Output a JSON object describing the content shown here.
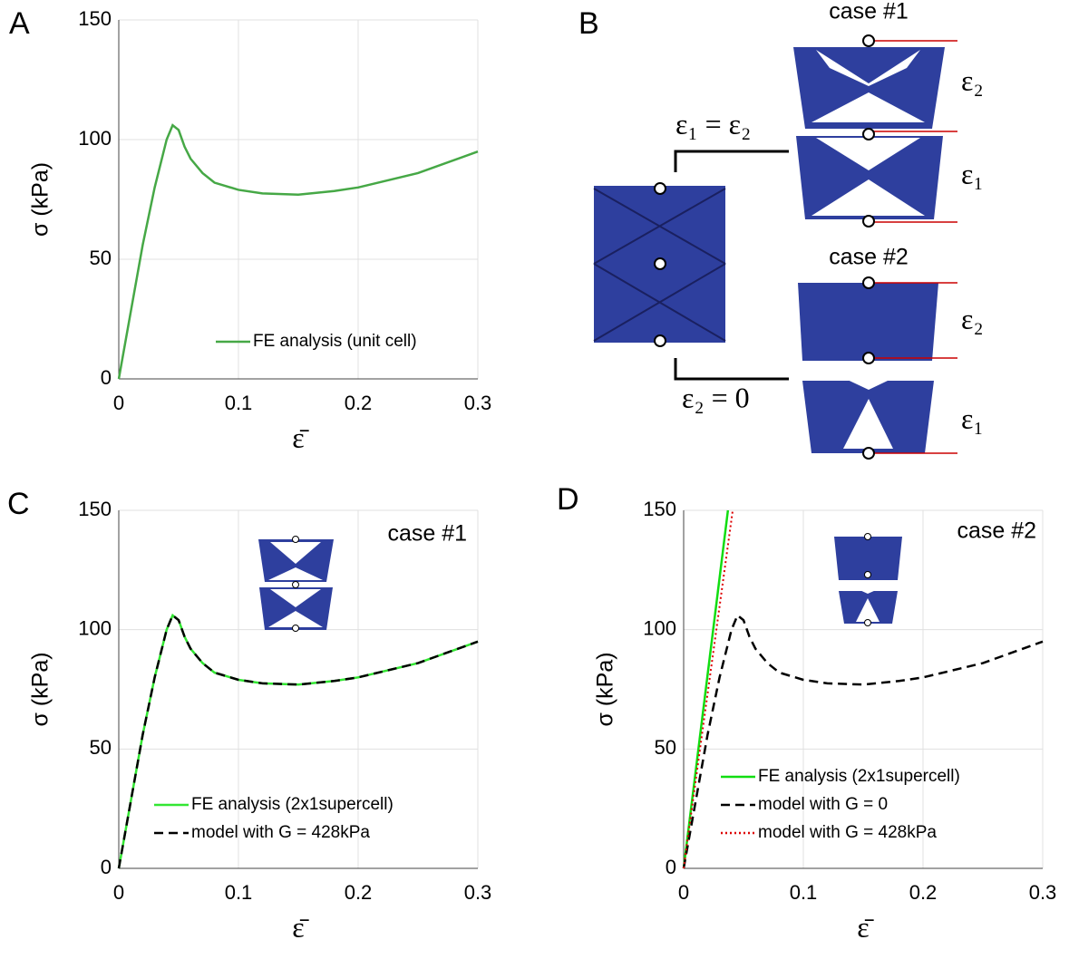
{
  "chart_data": [
    {
      "type": "line",
      "panel": "A",
      "xlabel": "ε̄",
      "ylabel": "σ (kPa)",
      "xlim": [
        0,
        0.3
      ],
      "ylim": [
        0,
        150
      ],
      "xticks": [
        0,
        0.1,
        0.2,
        0.3
      ],
      "yticks": [
        0,
        50,
        100,
        150
      ],
      "grid": true,
      "legend": "lower right",
      "series": [
        {
          "name": "FE analysis (unit cell)",
          "color": "#46a846",
          "style": "solid",
          "x": [
            0,
            0.01,
            0.02,
            0.03,
            0.04,
            0.045,
            0.05,
            0.055,
            0.06,
            0.07,
            0.08,
            0.1,
            0.12,
            0.15,
            0.18,
            0.2,
            0.25,
            0.3
          ],
          "values": [
            0,
            28,
            56,
            80,
            100,
            106,
            104,
            97,
            92,
            86,
            82,
            79,
            77.5,
            77,
            78.5,
            80,
            86,
            95
          ]
        }
      ]
    },
    {
      "type": "line",
      "panel": "C",
      "annotation": "case #1",
      "xlabel": "ε̄",
      "ylabel": "σ (kPa)",
      "xlim": [
        0,
        0.3
      ],
      "ylim": [
        0,
        150
      ],
      "xticks": [
        0,
        0.1,
        0.2,
        0.3
      ],
      "yticks": [
        0,
        50,
        100,
        150
      ],
      "grid": true,
      "legend": "lower left",
      "series": [
        {
          "name": "FE analysis (2x1supercell)",
          "color": "#33e633",
          "style": "solid",
          "x": [
            0,
            0.01,
            0.02,
            0.03,
            0.04,
            0.045,
            0.05,
            0.055,
            0.06,
            0.07,
            0.08,
            0.1,
            0.12,
            0.15,
            0.18,
            0.2,
            0.25,
            0.3
          ],
          "values": [
            0,
            28,
            56,
            80,
            100,
            106,
            104,
            97,
            92,
            86,
            82,
            79,
            77.5,
            77,
            78.5,
            80,
            86,
            95
          ]
        },
        {
          "name": "model with G = 428kPa",
          "color": "#000000",
          "style": "dashed",
          "x": [
            0,
            0.01,
            0.02,
            0.03,
            0.04,
            0.045,
            0.05,
            0.055,
            0.06,
            0.07,
            0.08,
            0.1,
            0.12,
            0.15,
            0.18,
            0.2,
            0.25,
            0.3
          ],
          "values": [
            0,
            28,
            56,
            80,
            100,
            106,
            104,
            97,
            92,
            86,
            82,
            79,
            77.5,
            77,
            78.5,
            80,
            86,
            95
          ]
        }
      ]
    },
    {
      "type": "line",
      "panel": "D",
      "annotation": "case #2",
      "xlabel": "ε̄",
      "ylabel": "σ (kPa)",
      "xlim": [
        0,
        0.3
      ],
      "ylim": [
        0,
        150
      ],
      "xticks": [
        0,
        0.1,
        0.2,
        0.3
      ],
      "yticks": [
        0,
        50,
        100,
        150
      ],
      "grid": true,
      "legend": "lower left",
      "series": [
        {
          "name": "FE analysis (2x1supercell)",
          "color": "#11dd11",
          "style": "solid",
          "x": [
            0,
            0.037
          ],
          "values": [
            0,
            150
          ]
        },
        {
          "name": "model with G = 0",
          "color": "#000000",
          "style": "dashed",
          "x": [
            0,
            0.01,
            0.02,
            0.03,
            0.04,
            0.045,
            0.05,
            0.055,
            0.06,
            0.07,
            0.08,
            0.1,
            0.12,
            0.15,
            0.18,
            0.2,
            0.25,
            0.3
          ],
          "values": [
            0,
            28,
            56,
            80,
            100,
            106,
            104,
            97,
            92,
            86,
            82,
            79,
            77.5,
            77,
            78.5,
            80,
            86,
            95
          ]
        },
        {
          "name": "model with G = 428kPa",
          "color": "#dd0000",
          "style": "dotted",
          "x": [
            0,
            0.041
          ],
          "values": [
            0,
            150
          ]
        }
      ]
    }
  ],
  "diagram": {
    "panel": "B",
    "case1": "case #1",
    "case2": "case #2",
    "bracket_top": "ε₁ = ε₂",
    "bracket_bottom": "ε₂ = 0",
    "case1_upper": "ε₂",
    "case1_lower": "ε₁",
    "case2_upper": "ε₂",
    "case2_lower": "ε₁"
  }
}
